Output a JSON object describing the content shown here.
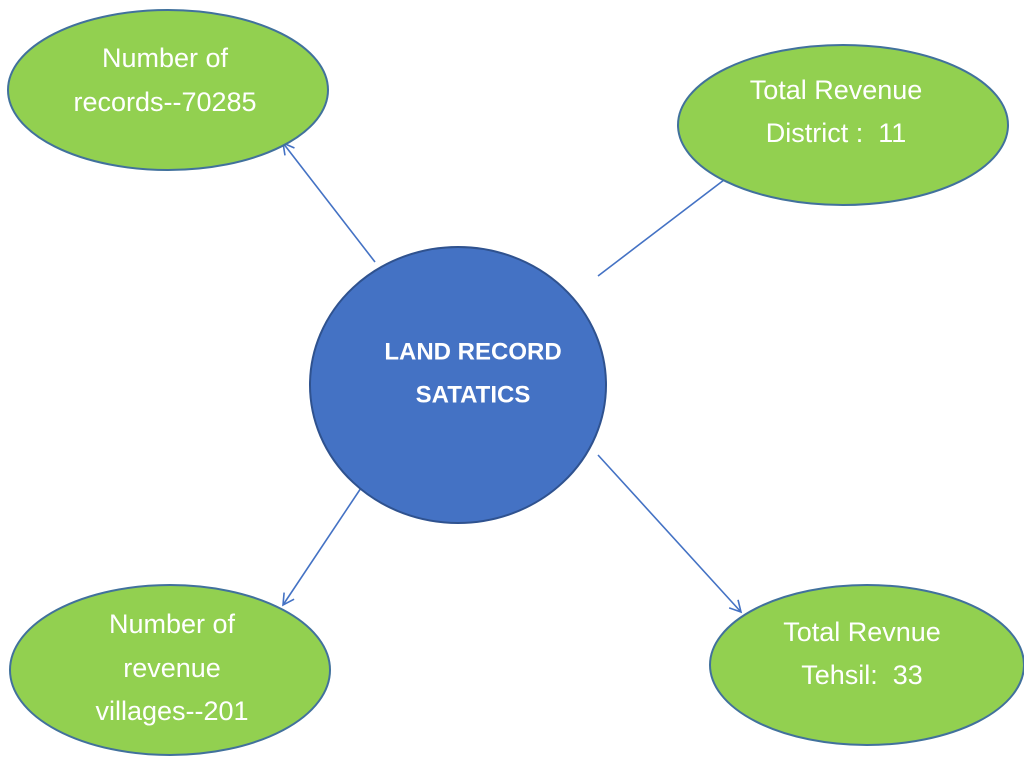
{
  "nodes": [
    {
      "lines": [
        "LAND RECORD",
        "SATATICS"
      ]
    },
    {
      "lines": [
        "Number of",
        "records--70285"
      ]
    },
    {
      "lines": [
        "Total Revenue",
        "District :  11"
      ]
    },
    {
      "lines": [
        "Number of",
        "revenue",
        "villages--201"
      ]
    },
    {
      "lines": [
        "Total Revnue",
        "Tehsil:  33"
      ]
    }
  ]
}
